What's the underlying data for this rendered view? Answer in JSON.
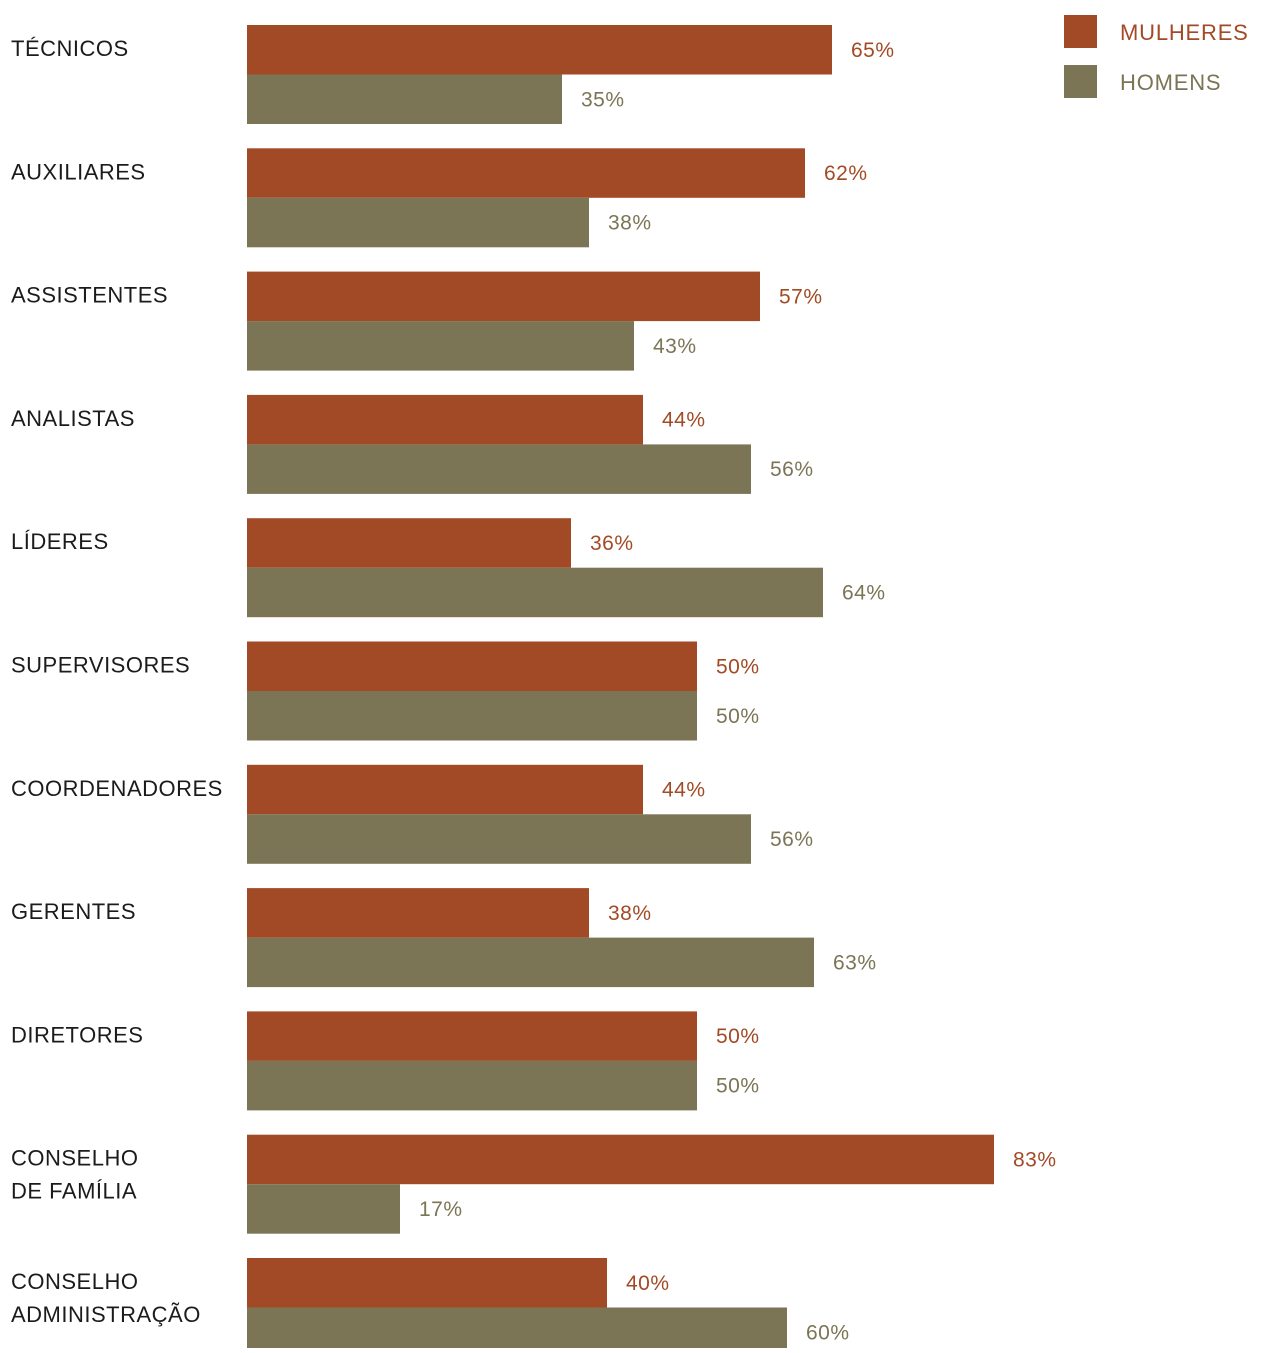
{
  "chart_data": {
    "type": "bar",
    "orientation": "horizontal",
    "categories": [
      [
        "TÉCNICOS"
      ],
      [
        "AUXILIARES"
      ],
      [
        "ASSISTENTES"
      ],
      [
        "ANALISTAS"
      ],
      [
        "LÍDERES"
      ],
      [
        "SUPERVISORES"
      ],
      [
        "COORDENADORES"
      ],
      [
        "GERENTES"
      ],
      [
        "DIRETORES"
      ],
      [
        "CONSELHO",
        "DE FAMÍLIA"
      ],
      [
        "CONSELHO",
        "ADMINISTRAÇÃO"
      ]
    ],
    "series": [
      {
        "name": "MULHERES",
        "color": "#a24a25",
        "values": [
          65,
          62,
          57,
          44,
          36,
          50,
          44,
          38,
          50,
          83,
          40
        ],
        "labels": [
          "65%",
          "62%",
          "57%",
          "44%",
          "36%",
          "50%",
          "44%",
          "38%",
          "50%",
          "83%",
          "40%"
        ]
      },
      {
        "name": "HOMENS",
        "color": "#7b7555",
        "values": [
          35,
          38,
          43,
          56,
          64,
          50,
          56,
          63,
          50,
          17,
          60
        ],
        "labels": [
          "35%",
          "38%",
          "43%",
          "56%",
          "64%",
          "50%",
          "56%",
          "63%",
          "50%",
          "17%",
          "60%"
        ]
      }
    ],
    "xlim": [
      0,
      100
    ],
    "grid": false,
    "axes_visible": false,
    "legend_position": "top-right"
  }
}
